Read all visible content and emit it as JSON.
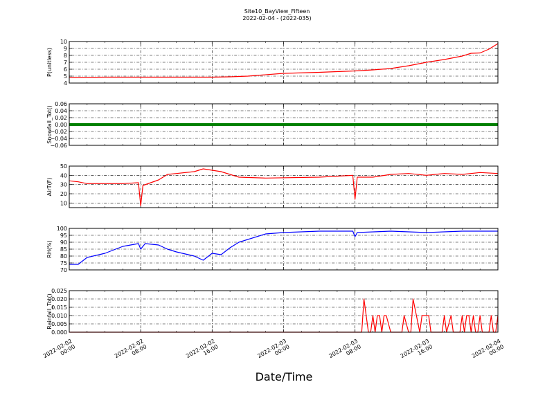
{
  "figure": {
    "title": "Site10_BayView_Fifteen",
    "subtitle": "2022-02-04 - (2022-035)",
    "xlabel": "Date/Time"
  },
  "chart_data": {
    "type": "line",
    "x_range": [
      "2022-02-02T00:00",
      "2022-02-04T00:00"
    ],
    "x_ticks": [
      {
        "line1": "2022-02-02",
        "line2": "00:00"
      },
      {
        "line1": "2022-02-02",
        "line2": "08:00"
      },
      {
        "line1": "2022-02-02",
        "line2": "16:00"
      },
      {
        "line1": "2022-02-03",
        "line2": "00:00"
      },
      {
        "line1": "2022-02-03",
        "line2": "08:00"
      },
      {
        "line1": "2022-02-03",
        "line2": "16:00"
      },
      {
        "line1": "2022-02-04",
        "line2": "00:00"
      }
    ],
    "grid": true,
    "panels": [
      {
        "ylabel": "P(unitless)",
        "ylim": [
          4,
          10
        ],
        "yticks": [
          "4",
          "5",
          "6",
          "7",
          "8",
          "9",
          "10"
        ],
        "color": "#ff0000",
        "series": [
          {
            "x": [
              "2022-02-02T00:00",
              "2022-02-02T04:00",
              "2022-02-02T08:00",
              "2022-02-02T12:00",
              "2022-02-02T16:00",
              "2022-02-02T18:00",
              "2022-02-02T20:00",
              "2022-02-03T00:00",
              "2022-02-03T04:00",
              "2022-02-03T08:00",
              "2022-02-03T10:00",
              "2022-02-03T12:00",
              "2022-02-03T14:00",
              "2022-02-03T16:00",
              "2022-02-03T18:00",
              "2022-02-03T20:00",
              "2022-02-03T21:00",
              "2022-02-03T22:00",
              "2022-02-03T23:00",
              "2022-02-04T00:00"
            ],
            "y": [
              4.8,
              4.85,
              4.85,
              4.85,
              4.85,
              4.9,
              5.0,
              5.4,
              5.55,
              5.75,
              5.9,
              6.1,
              6.5,
              7.0,
              7.4,
              7.9,
              8.3,
              8.35,
              8.9,
              9.7
            ]
          }
        ]
      },
      {
        "ylabel": "Snowfall_Tot()",
        "ylim": [
          -0.06,
          0.06
        ],
        "yticks": [
          "−0.06",
          "−0.04",
          "−0.02",
          "0.00",
          "0.02",
          "0.04",
          "0.06"
        ],
        "color": "#008000",
        "series": [
          {
            "x": [
              "2022-02-02T00:00",
              "2022-02-04T00:00"
            ],
            "y": [
              0,
              0
            ]
          }
        ]
      },
      {
        "ylabel": "AirT(F)",
        "ylim": [
          5,
          50
        ],
        "yticks": [
          "10",
          "20",
          "30",
          "40",
          "50"
        ],
        "color": "#ff0000",
        "series": [
          {
            "x": [
              "2022-02-02T00:00",
              "2022-02-02T01:00",
              "2022-02-02T02:00",
              "2022-02-02T04:00",
              "2022-02-02T06:00",
              "2022-02-02T07:45",
              "2022-02-02T08:00",
              "2022-02-02T08:15",
              "2022-02-02T10:00",
              "2022-02-02T11:00",
              "2022-02-02T12:00",
              "2022-02-02T14:00",
              "2022-02-02T15:00",
              "2022-02-02T17:00",
              "2022-02-02T19:00",
              "2022-02-02T22:00",
              "2022-02-03T04:00",
              "2022-02-03T07:45",
              "2022-02-03T08:00",
              "2022-02-03T08:15",
              "2022-02-03T10:00",
              "2022-02-03T12:00",
              "2022-02-03T14:00",
              "2022-02-03T16:00",
              "2022-02-03T18:00",
              "2022-02-03T20:00",
              "2022-02-03T22:00",
              "2022-02-04T00:00"
            ],
            "y": [
              34,
              33,
              31,
              31,
              31,
              32,
              7,
              29,
              35,
              41,
              42,
              44,
              47,
              44,
              38,
              37,
              38,
              40,
              14,
              38,
              38,
              41,
              42,
              40,
              42,
              41,
              43,
              42
            ]
          }
        ]
      },
      {
        "ylabel": "RH(%)",
        "ylim": [
          70,
          100
        ],
        "yticks": [
          "70",
          "75",
          "80",
          "85",
          "90",
          "95",
          "100"
        ],
        "color": "#0000ff",
        "series": [
          {
            "x": [
              "2022-02-02T00:00",
              "2022-02-02T01:00",
              "2022-02-02T02:00",
              "2022-02-02T04:00",
              "2022-02-02T06:00",
              "2022-02-02T07:45",
              "2022-02-02T08:00",
              "2022-02-02T08:30",
              "2022-02-02T10:00",
              "2022-02-02T11:00",
              "2022-02-02T12:00",
              "2022-02-02T14:00",
              "2022-02-02T15:00",
              "2022-02-02T16:00",
              "2022-02-02T17:00",
              "2022-02-02T18:00",
              "2022-02-02T19:00",
              "2022-02-02T22:00",
              "2022-02-03T00:00",
              "2022-02-03T04:00",
              "2022-02-03T07:45",
              "2022-02-03T08:00",
              "2022-02-03T08:15",
              "2022-02-03T12:00",
              "2022-02-03T16:00",
              "2022-02-03T20:00",
              "2022-02-04T00:00"
            ],
            "y": [
              74,
              74,
              79,
              82,
              87,
              89,
              85,
              89,
              88,
              85,
              83,
              80,
              77,
              82,
              81,
              86,
              90,
              96,
              97,
              98,
              98,
              94,
              97,
              98,
              97,
              98,
              98
            ]
          }
        ]
      },
      {
        "ylabel": "Rainfall_Tot()",
        "ylim": [
          0,
          0.025
        ],
        "yticks": [
          "0.000",
          "0.005",
          "0.010",
          "0.015",
          "0.020",
          "0.025"
        ],
        "color": "#ff0000",
        "series": [
          {
            "x": [
              "2022-02-02T00:00",
              "2022-02-03T08:00",
              "2022-02-03T08:45",
              "2022-02-03T09:00",
              "2022-02-03T09:30",
              "2022-02-03T09:45",
              "2022-02-03T10:00",
              "2022-02-03T10:15",
              "2022-02-03T10:30",
              "2022-02-03T10:45",
              "2022-02-03T11:00",
              "2022-02-03T11:15",
              "2022-02-03T11:30",
              "2022-02-03T12:00",
              "2022-02-03T12:15",
              "2022-02-03T12:30",
              "2022-02-03T13:15",
              "2022-02-03T13:30",
              "2022-02-03T14:00",
              "2022-02-03T14:15",
              "2022-02-03T14:30",
              "2022-02-03T15:15",
              "2022-02-03T15:30",
              "2022-02-03T16:00",
              "2022-02-03T16:15",
              "2022-02-03T16:30",
              "2022-02-03T17:00",
              "2022-02-03T17:15",
              "2022-02-03T17:45",
              "2022-02-03T18:00",
              "2022-02-03T18:15",
              "2022-02-03T18:45",
              "2022-02-03T19:00",
              "2022-02-03T19:15",
              "2022-02-03T19:45",
              "2022-02-03T20:00",
              "2022-02-03T20:15",
              "2022-02-03T20:30",
              "2022-02-03T20:45",
              "2022-02-03T21:00",
              "2022-02-03T21:15",
              "2022-02-03T21:30",
              "2022-02-03T21:45",
              "2022-02-03T22:00",
              "2022-02-03T22:15",
              "2022-02-03T23:00",
              "2022-02-03T23:15",
              "2022-02-03T23:30",
              "2022-02-03T23:45",
              "2022-02-04T00:00"
            ],
            "y": [
              0,
              0,
              0,
              0.02,
              0,
              0,
              0.01,
              0,
              0.01,
              0.01,
              0,
              0.01,
              0.01,
              0,
              0,
              0,
              0,
              0.01,
              0,
              0,
              0.02,
              0,
              0.01,
              0.01,
              0.01,
              0,
              0,
              0,
              0,
              0.01,
              0,
              0.01,
              0,
              0,
              0,
              0.01,
              0,
              0.01,
              0.01,
              0,
              0.01,
              0,
              0,
              0.01,
              0,
              0,
              0.01,
              0,
              0,
              0.01
            ]
          }
        ]
      }
    ]
  }
}
